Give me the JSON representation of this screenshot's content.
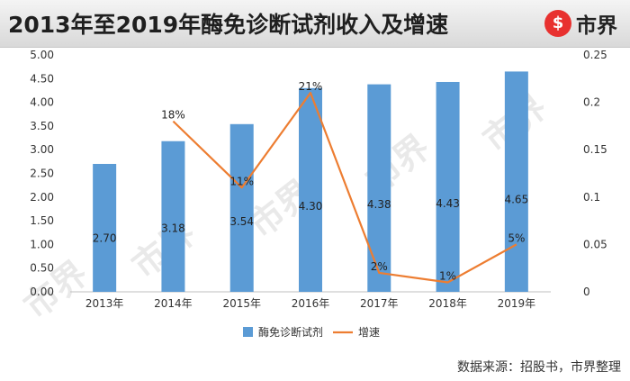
{
  "header": {
    "title": "2013年至2019年酶免诊断试剂收入及增速",
    "logo_mark": "$",
    "logo_text": "市界"
  },
  "watermark_text": "市界",
  "source": "数据来源：招股书，市界整理",
  "colors": {
    "bar": "#5b9bd5",
    "line": "#ed7d31",
    "accent": "#e8312f"
  },
  "chart_data": {
    "type": "bar+line",
    "title": "2013年至2019年酶免诊断试剂收入及增速",
    "categories": [
      "2013年",
      "2014年",
      "2015年",
      "2016年",
      "2017年",
      "2018年",
      "2019年"
    ],
    "series": [
      {
        "name": "酶免诊断试剂",
        "type": "bar",
        "axis": "left",
        "values": [
          2.7,
          3.18,
          3.54,
          4.3,
          4.38,
          4.43,
          4.65
        ],
        "labels": [
          "2.70",
          "3.18",
          "3.54",
          "4.30",
          "4.38",
          "4.43",
          "4.65"
        ]
      },
      {
        "name": "增速",
        "type": "line",
        "axis": "right",
        "values": [
          null,
          0.18,
          0.11,
          0.21,
          0.02,
          0.01,
          0.05
        ],
        "labels": [
          "",
          "18%",
          "11%",
          "21%",
          "2%",
          "1%",
          "5%"
        ]
      }
    ],
    "y_left": {
      "min": 0,
      "max": 5,
      "step": 0.5,
      "ticks": [
        "0.00",
        "0.50",
        "1.00",
        "1.50",
        "2.00",
        "2.50",
        "3.00",
        "3.50",
        "4.00",
        "4.50",
        "5.00"
      ]
    },
    "y_right": {
      "min": 0,
      "max": 0.25,
      "step": 0.05,
      "ticks": [
        "0",
        "0.05",
        "0.1",
        "0.15",
        "0.2",
        "0.25"
      ]
    },
    "grid": false,
    "legend_position": "bottom"
  }
}
